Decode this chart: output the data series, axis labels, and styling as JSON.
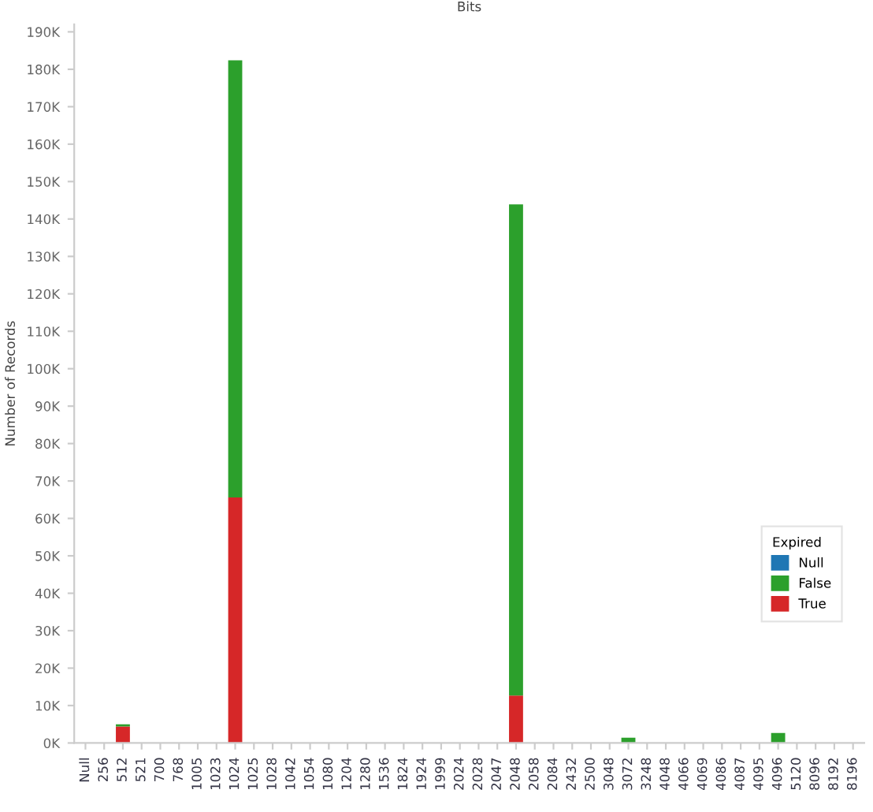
{
  "chart_data": {
    "type": "bar",
    "title": "Bits",
    "ylabel": "Number of Records",
    "stacked": true,
    "categories": [
      "Null",
      "256",
      "512",
      "521",
      "700",
      "768",
      "1005",
      "1023",
      "1024",
      "1025",
      "1028",
      "1042",
      "1054",
      "1080",
      "1204",
      "1280",
      "1536",
      "1824",
      "1924",
      "1999",
      "2024",
      "2028",
      "2047",
      "2048",
      "2058",
      "2084",
      "2432",
      "2500",
      "3048",
      "3072",
      "3248",
      "4048",
      "4066",
      "4069",
      "4086",
      "4087",
      "4095",
      "4096",
      "5120",
      "8096",
      "8192",
      "8196"
    ],
    "series": [
      {
        "name": "True",
        "color": "#d62728",
        "values": [
          null,
          null,
          4400,
          null,
          null,
          null,
          null,
          null,
          65600,
          null,
          null,
          null,
          null,
          null,
          null,
          null,
          null,
          null,
          null,
          null,
          null,
          null,
          null,
          12700,
          null,
          null,
          null,
          null,
          null,
          null,
          null,
          null,
          null,
          null,
          null,
          null,
          null,
          null,
          null,
          null,
          null,
          null
        ]
      },
      {
        "name": "False",
        "color": "#2ca02c",
        "values": [
          null,
          null,
          600,
          null,
          null,
          null,
          null,
          null,
          116800,
          null,
          null,
          null,
          null,
          null,
          null,
          null,
          null,
          null,
          null,
          null,
          null,
          null,
          null,
          131200,
          null,
          null,
          null,
          null,
          null,
          1400,
          null,
          null,
          null,
          null,
          null,
          null,
          null,
          2700,
          null,
          null,
          null,
          null
        ]
      },
      {
        "name": "Null",
        "color": "#1f77b4",
        "values": [
          null,
          null,
          null,
          null,
          null,
          null,
          null,
          null,
          null,
          null,
          null,
          null,
          null,
          null,
          null,
          null,
          null,
          null,
          null,
          null,
          null,
          null,
          null,
          null,
          null,
          null,
          null,
          null,
          null,
          null,
          null,
          null,
          null,
          null,
          null,
          null,
          null,
          null,
          null,
          null,
          null,
          null
        ]
      }
    ],
    "legend_title": "Expired",
    "legend": "bottom right",
    "ylim": [
      0,
      192000
    ],
    "yticks": [
      {
        "value": 0,
        "label": "0K"
      },
      {
        "value": 10000,
        "label": "10K"
      },
      {
        "value": 20000,
        "label": "20K"
      },
      {
        "value": 30000,
        "label": "30K"
      },
      {
        "value": 40000,
        "label": "40K"
      },
      {
        "value": 50000,
        "label": "50K"
      },
      {
        "value": 60000,
        "label": "60K"
      },
      {
        "value": 70000,
        "label": "70K"
      },
      {
        "value": 80000,
        "label": "80K"
      },
      {
        "value": 90000,
        "label": "90K"
      },
      {
        "value": 100000,
        "label": "100K"
      },
      {
        "value": 110000,
        "label": "110K"
      },
      {
        "value": 120000,
        "label": "120K"
      },
      {
        "value": 130000,
        "label": "130K"
      },
      {
        "value": 140000,
        "label": "140K"
      },
      {
        "value": 150000,
        "label": "150K"
      },
      {
        "value": 160000,
        "label": "160K"
      },
      {
        "value": 170000,
        "label": "170K"
      },
      {
        "value": 180000,
        "label": "180K"
      },
      {
        "value": 190000,
        "label": "190K"
      }
    ]
  }
}
